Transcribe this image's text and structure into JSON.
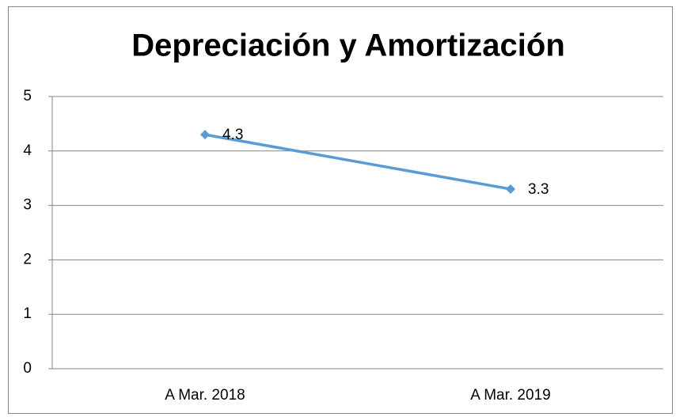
{
  "chart_data": {
    "type": "line",
    "title": "Depreciación y Amortización",
    "categories": [
      "A Mar. 2018",
      "A Mar. 2019"
    ],
    "values": [
      4.3,
      3.3
    ],
    "color": "#5b9bd5",
    "ylim": [
      0,
      5
    ],
    "yticks": [
      0,
      1,
      2,
      3,
      4,
      5
    ],
    "grid": true
  }
}
